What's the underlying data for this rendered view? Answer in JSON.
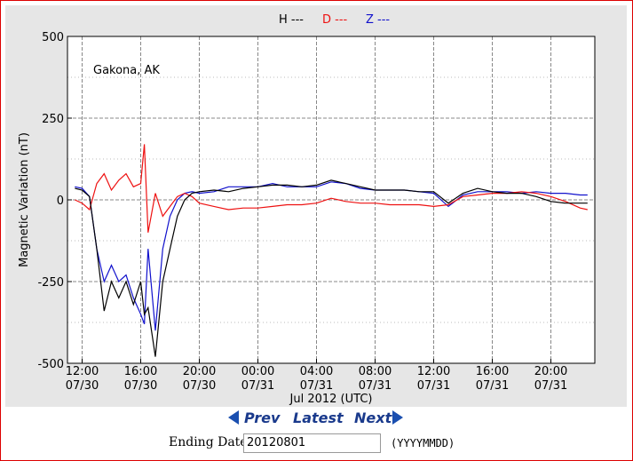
{
  "chart_data": {
    "type": "line",
    "ylabel": "Magnetic Variation (nT)",
    "xlabel": "Jul 2012 (UTC)",
    "annotation": "Gakona, AK",
    "ylim": [
      -500,
      500
    ],
    "yticks": [
      -500,
      -250,
      0,
      250,
      500
    ],
    "xlim": [
      "2012-07-30T11:00",
      "2012-07-31T23:00"
    ],
    "xticks": [
      {
        "value": "2012-07-30T12:00",
        "label": [
          "12:00",
          "07/30"
        ]
      },
      {
        "value": "2012-07-30T16:00",
        "label": [
          "16:00",
          "07/30"
        ]
      },
      {
        "value": "2012-07-30T20:00",
        "label": [
          "20:00",
          "07/30"
        ]
      },
      {
        "value": "2012-07-31T00:00",
        "label": [
          "00:00",
          "07/31"
        ]
      },
      {
        "value": "2012-07-31T04:00",
        "label": [
          "04:00",
          "07/31"
        ]
      },
      {
        "value": "2012-07-31T08:00",
        "label": [
          "08:00",
          "07/31"
        ]
      },
      {
        "value": "2012-07-31T12:00",
        "label": [
          "12:00",
          "07/31"
        ]
      },
      {
        "value": "2012-07-31T16:00",
        "label": [
          "16:00",
          "07/31"
        ]
      },
      {
        "value": "2012-07-31T20:00",
        "label": [
          "20:00",
          "07/31"
        ]
      }
    ],
    "grid": true,
    "x": [
      "2012-07-30T11:30",
      "2012-07-30T12:00",
      "2012-07-30T12:30",
      "2012-07-30T13:00",
      "2012-07-30T13:30",
      "2012-07-30T14:00",
      "2012-07-30T14:30",
      "2012-07-30T15:00",
      "2012-07-30T15:30",
      "2012-07-30T16:00",
      "2012-07-30T16:15",
      "2012-07-30T16:30",
      "2012-07-30T17:00",
      "2012-07-30T17:30",
      "2012-07-30T18:00",
      "2012-07-30T18:30",
      "2012-07-30T19:00",
      "2012-07-30T19:30",
      "2012-07-30T20:00",
      "2012-07-30T21:00",
      "2012-07-30T22:00",
      "2012-07-30T23:00",
      "2012-07-31T00:00",
      "2012-07-31T01:00",
      "2012-07-31T02:00",
      "2012-07-31T03:00",
      "2012-07-31T04:00",
      "2012-07-31T05:00",
      "2012-07-31T06:00",
      "2012-07-31T07:00",
      "2012-07-31T08:00",
      "2012-07-31T09:00",
      "2012-07-31T10:00",
      "2012-07-31T11:00",
      "2012-07-31T12:00",
      "2012-07-31T13:00",
      "2012-07-31T14:00",
      "2012-07-31T15:00",
      "2012-07-31T16:00",
      "2012-07-31T17:00",
      "2012-07-31T18:00",
      "2012-07-31T19:00",
      "2012-07-31T20:00",
      "2012-07-31T21:00",
      "2012-07-31T22:00",
      "2012-07-31T22:30"
    ],
    "series": [
      {
        "name": "H ---",
        "color": "#000000",
        "values": [
          35,
          30,
          10,
          -150,
          -340,
          -250,
          -300,
          -250,
          -320,
          -250,
          -350,
          -330,
          -480,
          -250,
          -150,
          -50,
          0,
          20,
          25,
          30,
          25,
          35,
          40,
          45,
          45,
          40,
          45,
          60,
          50,
          40,
          30,
          30,
          30,
          25,
          25,
          -10,
          20,
          35,
          25,
          20,
          20,
          10,
          -5,
          -10,
          -10,
          -10
        ]
      },
      {
        "name": "D ---",
        "color": "#ee1111",
        "values": [
          0,
          -10,
          -30,
          50,
          80,
          30,
          60,
          80,
          40,
          50,
          170,
          -100,
          20,
          -50,
          -20,
          10,
          20,
          10,
          -10,
          -20,
          -30,
          -25,
          -25,
          -20,
          -15,
          -15,
          -10,
          5,
          -5,
          -10,
          -10,
          -15,
          -15,
          -15,
          -20,
          -15,
          10,
          15,
          20,
          20,
          25,
          20,
          10,
          -5,
          -25,
          -30
        ]
      },
      {
        "name": "Z ---",
        "color": "#1111cc",
        "values": [
          40,
          35,
          10,
          -150,
          -250,
          -200,
          -250,
          -230,
          -300,
          -350,
          -380,
          -150,
          -400,
          -150,
          -50,
          0,
          20,
          25,
          20,
          25,
          40,
          40,
          40,
          50,
          40,
          40,
          40,
          55,
          50,
          35,
          30,
          30,
          30,
          25,
          20,
          -20,
          15,
          25,
          25,
          25,
          20,
          25,
          20,
          20,
          15,
          15
        ]
      }
    ]
  },
  "navigation": {
    "prev": "Prev",
    "latest": "Latest",
    "next": "Next"
  },
  "date_form": {
    "label": "Ending Date:",
    "value": "20120801",
    "hint": "(YYYYMMDD)"
  }
}
